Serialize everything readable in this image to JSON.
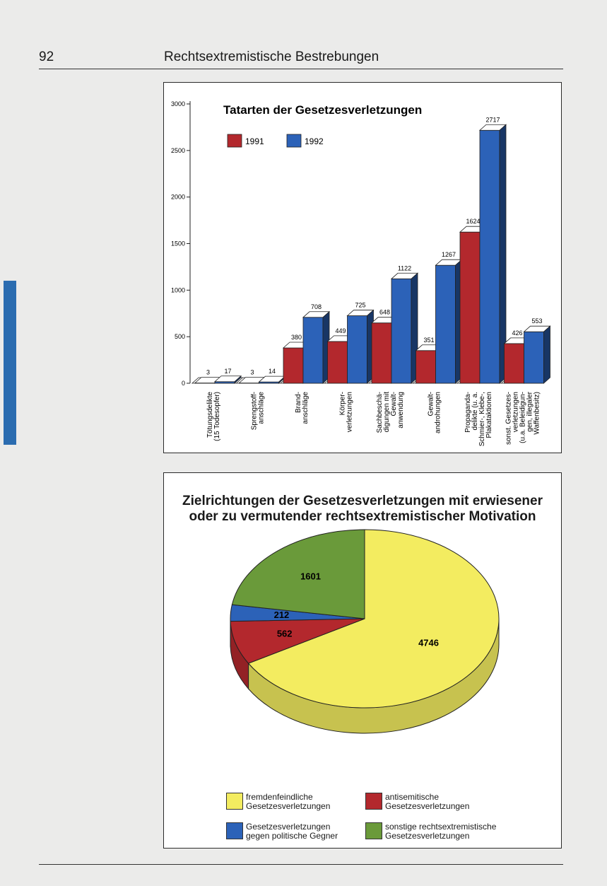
{
  "page": {
    "number": "92",
    "running_head": "Rechtsextremistische Bestrebungen"
  },
  "colors": {
    "red": "#b3282d",
    "blue": "#2c62b8",
    "yellow": "#f3ec60",
    "green": "#6a9a3a",
    "side_tab": "#2b6cb0"
  },
  "chart_data": [
    {
      "type": "bar",
      "title": "Tatarten der Gesetzesverletzungen",
      "ylim": [
        0,
        3000
      ],
      "yticks": [
        0,
        500,
        1000,
        1500,
        2000,
        2500,
        3000
      ],
      "grid": false,
      "legend_position": "top-left",
      "categories": [
        [
          "Tötungsdelikte",
          "(15 Todesopfer)"
        ],
        [
          "Sprengstoff-",
          "anschläge"
        ],
        [
          "Brand-",
          "anschläge"
        ],
        [
          "Körper-",
          "verletzungen"
        ],
        [
          "Sachbeschä-",
          "digungen mit",
          "Gewalt-",
          "anwendung"
        ],
        [
          "Gewalt-",
          "androhungen"
        ],
        [
          "Propaganda-",
          "delikte (u. a.",
          "Schmier-, Klebe-,",
          "Plakataktionen"
        ],
        [
          "sonst. Gesetzes-",
          "verletzungen",
          "(u.a. Beleidigun-",
          "gen, illegaler",
          "Waffenbesitz)"
        ]
      ],
      "series": [
        {
          "name": "1991",
          "color": "#b3282d",
          "values": [
            3,
            3,
            380,
            449,
            648,
            351,
            1624,
            426
          ]
        },
        {
          "name": "1992",
          "color": "#2c62b8",
          "values": [
            17,
            14,
            708,
            725,
            1122,
            1267,
            2717,
            553
          ]
        }
      ]
    },
    {
      "type": "pie",
      "title": [
        "Zielrichtungen der Gesetzesverletzungen mit erwiesener",
        "oder zu vermutender rechtsextremistischer Motivation"
      ],
      "legend_position": "bottom",
      "slices": [
        {
          "label": [
            "fremdenfeindliche",
            "Gesetzesverletzungen"
          ],
          "value": 4746,
          "color": "#f3ec60"
        },
        {
          "label": [
            "antisemitische",
            "Gesetzesverletzungen"
          ],
          "value": 562,
          "color": "#b3282d"
        },
        {
          "label": [
            "Gesetzesverletzungen",
            "gegen politische Gegner"
          ],
          "value": 212,
          "color": "#2c62b8"
        },
        {
          "label": [
            "sonstige rechtsextremistische",
            "Gesetzesverletzungen"
          ],
          "value": 1601,
          "color": "#6a9a3a"
        }
      ]
    }
  ]
}
